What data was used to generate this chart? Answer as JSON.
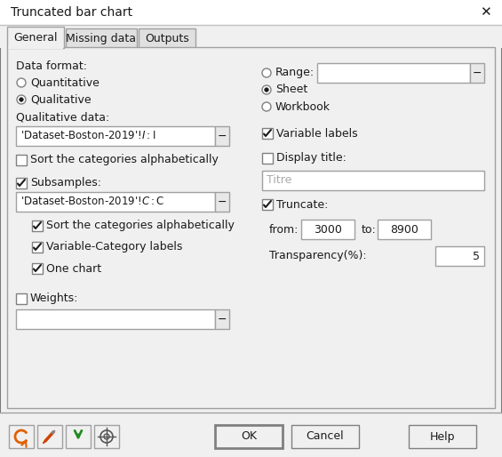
{
  "title": "Truncated bar chart",
  "bg_color": "#f0f0f0",
  "tabs": [
    "General",
    "Missing data",
    "Outputs"
  ],
  "left_panel": {
    "data_format_label": "Data format:",
    "radio_quantitative": "Quantitative",
    "radio_qualitative": "Qualitative",
    "qual_data_label": "Qualitative data:",
    "qual_data_value": "'Dataset-Boston-2019'!$I:$I",
    "sort_categories": "Sort the categories alphabetically",
    "sort_checked": false,
    "subsamples_label": "Subsamples:",
    "subsamples_checked": true,
    "subsamples_value": "'Dataset-Boston-2019'!$C:$C",
    "sub_sort_checked": true,
    "sub_sort_label": "Sort the categories alphabetically",
    "var_cat_checked": true,
    "var_cat_label": "Variable-Category labels",
    "one_chart_checked": true,
    "one_chart_label": "One chart",
    "weights_label": "Weights:",
    "weights_checked": false
  },
  "right_panel": {
    "range_label": "Range:",
    "range_selected": false,
    "sheet_label": "Sheet",
    "sheet_selected": true,
    "workbook_label": "Workbook",
    "workbook_selected": false,
    "var_labels_checked": true,
    "var_labels_label": "Variable labels",
    "display_title_checked": false,
    "display_title_label": "Display title:",
    "titre_placeholder": "Titre",
    "truncate_checked": true,
    "truncate_label": "Truncate:",
    "from_label": "from:",
    "from_value": "3000",
    "to_label": "to:",
    "to_value": "8900",
    "transparency_label": "Transparency(%):",
    "transparency_value": "5"
  },
  "buttons": [
    "OK",
    "Cancel",
    "Help"
  ]
}
